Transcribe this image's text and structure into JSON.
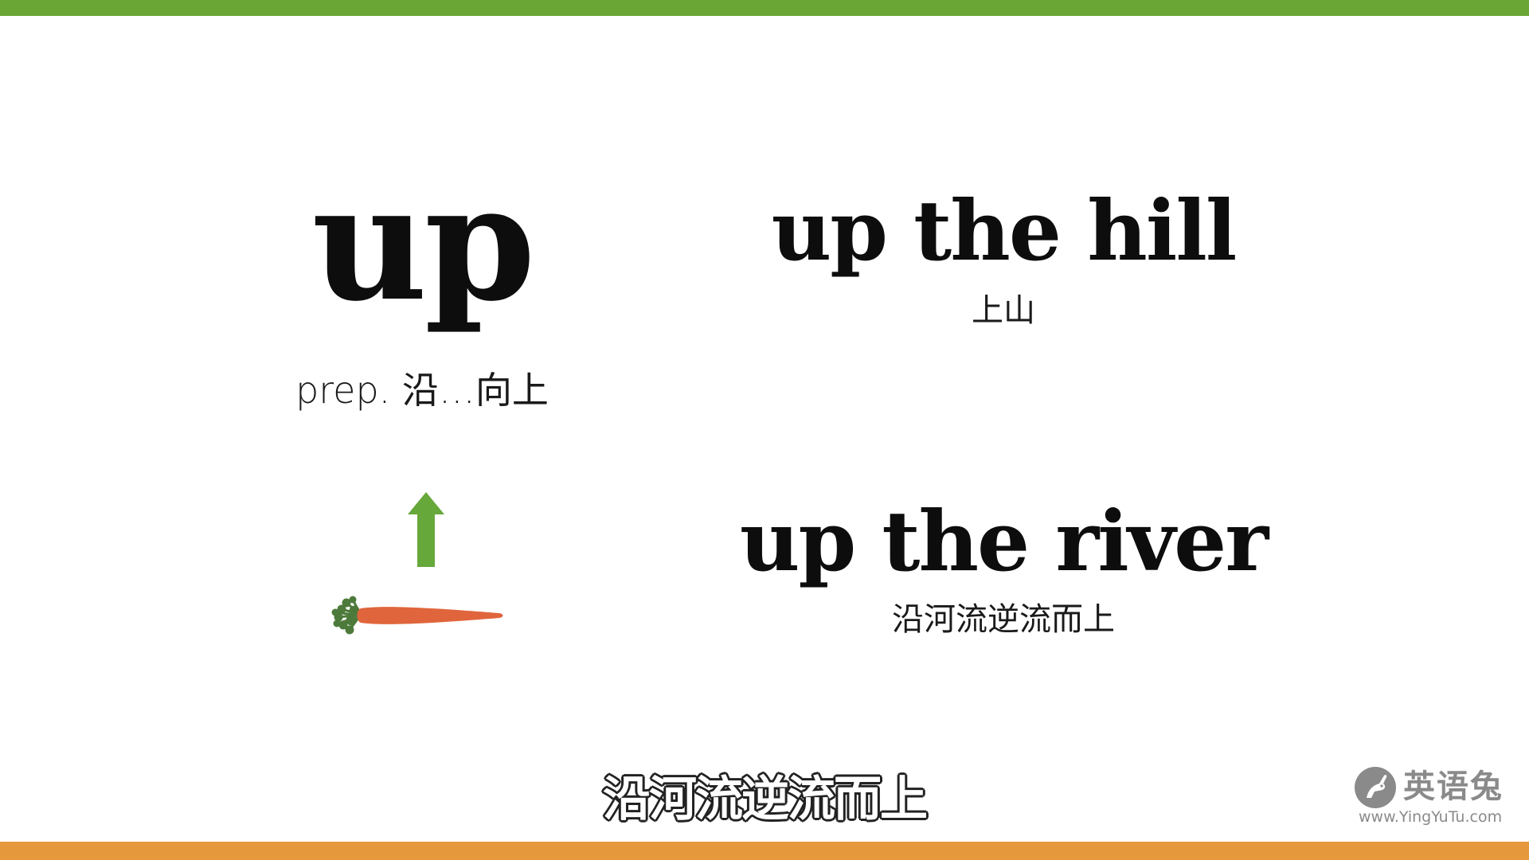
{
  "colors": {
    "top_bar": "#6aa636",
    "bottom_bar": "#e6993c",
    "arrow": "#66a83a",
    "carrot": "#e0653c",
    "carrot_leaves": "#4d7a3a",
    "logo_gray": "#8a8a8a"
  },
  "vocab": {
    "word": "up",
    "definition": "prep. 沿…向上"
  },
  "examples": [
    {
      "phrase": "up the hill",
      "translation": "上山"
    },
    {
      "phrase": "up the river",
      "translation": "沿河流逆流而上"
    }
  ],
  "illustration": {
    "arrow_icon": "arrow-up-icon",
    "image": "carrot-image"
  },
  "subtitle": "沿河流逆流而上",
  "logo": {
    "name": "英语兔",
    "url": "www.YingYuTu.com",
    "icon": "rabbit-logo-icon"
  }
}
